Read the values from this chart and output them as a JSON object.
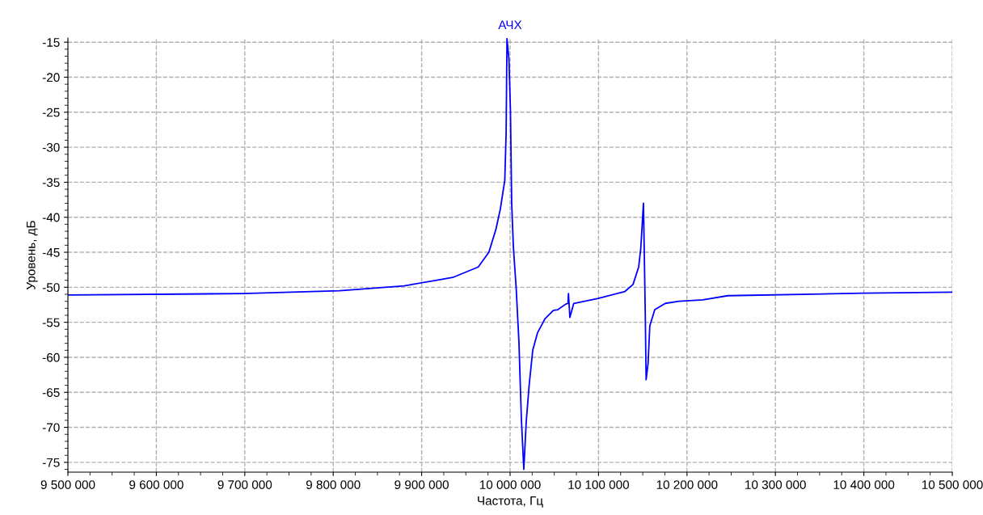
{
  "chart_data": {
    "type": "line",
    "title": "АЧХ",
    "xlabel": "Частота, Гц",
    "ylabel": "Уровень, дБ",
    "x": [
      9500000,
      9697000,
      9807000,
      9880000,
      9917000,
      9935000,
      9964000,
      9976000,
      9984000,
      9989000,
      9994000,
      9995500,
      9996500,
      9998700,
      10000400,
      10001800,
      10003700,
      10007000,
      10010000,
      10012800,
      10015500,
      10018200,
      10021600,
      10025600,
      10031000,
      10039400,
      10049000,
      10054000,
      10063000,
      10065500,
      10066000,
      10067600,
      10072000,
      10099600,
      10129800,
      10139000,
      10145400,
      10147800,
      10150800,
      10152000,
      10152900,
      10153800,
      10156000,
      10158000,
      10163600,
      10175500,
      10191000,
      10218000,
      10246000,
      10398500,
      10500000
    ],
    "series": [
      {
        "color": "#0000ff",
        "values": [
          -51.1,
          -50.9,
          -50.5,
          -49.8,
          -49.0,
          -48.6,
          -47.1,
          -45.0,
          -41.7,
          -38.8,
          -34.7,
          -28.1,
          -14.5,
          -17.4,
          -24.8,
          -38.0,
          -44.2,
          -50.4,
          -57.8,
          -68.9,
          -76.0,
          -69.3,
          -63.9,
          -59.0,
          -56.5,
          -54.5,
          -53.3,
          -53.2,
          -52.4,
          -52.3,
          -50.9,
          -54.3,
          -52.3,
          -51.6,
          -50.6,
          -49.6,
          -47.1,
          -44.4,
          -38.0,
          -47.1,
          -54.3,
          -63.2,
          -60.9,
          -55.5,
          -53.2,
          -52.3,
          -52.0,
          -51.8,
          -51.2,
          -50.85,
          -50.7
        ]
      }
    ],
    "xlim": [
      9500000,
      10500000
    ],
    "xticks": [
      {
        "value": 9500000,
        "label": "9 500 000"
      },
      {
        "value": 9600000,
        "label": "9 600 000"
      },
      {
        "value": 9700000,
        "label": "9 700 000"
      },
      {
        "value": 9800000,
        "label": "9 800 000"
      },
      {
        "value": 9900000,
        "label": "9 900 000"
      },
      {
        "value": 10000000,
        "label": "10 000 000"
      },
      {
        "value": 10100000,
        "label": "10 100 000"
      },
      {
        "value": 10200000,
        "label": "10 200 000"
      },
      {
        "value": 10300000,
        "label": "10 300 000"
      },
      {
        "value": 10400000,
        "label": "10 400 000"
      },
      {
        "value": 10500000,
        "label": "10 500 000"
      }
    ],
    "ylim": [
      -76.4,
      -14.4
    ],
    "yticks": [
      -75,
      -70,
      -65,
      -60,
      -55,
      -50,
      -45,
      -40,
      -35,
      -30,
      -25,
      -20,
      -15
    ],
    "grid": true,
    "legend": false,
    "marker": "none",
    "line_style": "solid"
  }
}
